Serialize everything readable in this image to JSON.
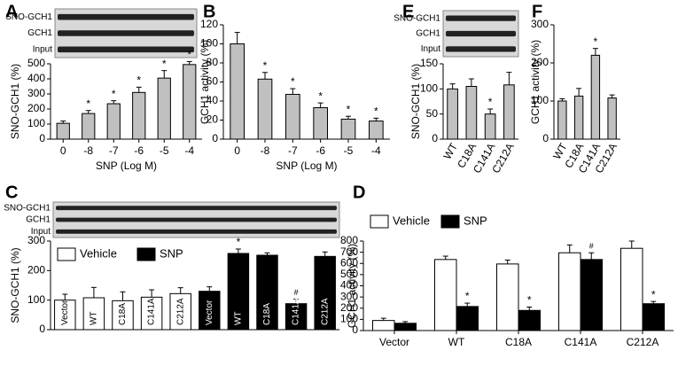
{
  "chart_data": [
    {
      "type": "bar",
      "panel": "A",
      "xlabel": "SNP (Log M)",
      "ylabel": "SNO-GCH1 (%)",
      "blot_labels": [
        "SNO-GCH1",
        "GCH1",
        "Input"
      ],
      "categories": [
        "0",
        "-8",
        "-7",
        "-6",
        "-5",
        "-4"
      ],
      "series": [
        {
          "color": "#c0c0c0",
          "values": [
            105,
            170,
            235,
            310,
            405,
            495
          ],
          "errors": [
            15,
            20,
            20,
            35,
            50,
            20
          ],
          "markers": [
            null,
            "*",
            "*",
            "*",
            "*",
            "*"
          ]
        }
      ],
      "ylim": [
        0,
        500
      ],
      "yticks": [
        0,
        100,
        200,
        300,
        400,
        500
      ]
    },
    {
      "type": "bar",
      "panel": "B",
      "xlabel": "SNP (Log M)",
      "ylabel": "GCH1 activity (%)",
      "categories": [
        "0",
        "-8",
        "-7",
        "-6",
        "-5",
        "-4"
      ],
      "series": [
        {
          "color": "#c0c0c0",
          "values": [
            100,
            63,
            47,
            33,
            21,
            19
          ],
          "errors": [
            12,
            7,
            6,
            5,
            3,
            3
          ],
          "markers": [
            null,
            "*",
            "*",
            "*",
            "*",
            "*"
          ]
        }
      ],
      "ylim": [
        0,
        120
      ],
      "yticks": [
        0,
        20,
        40,
        60,
        80,
        100,
        120
      ]
    },
    {
      "type": "bar",
      "panel": "E",
      "ylabel": "SNO-GCH1 (%)",
      "blot_labels": [
        "SNO-GCH1",
        "GCH1",
        "Input"
      ],
      "categories": [
        "WT",
        "C18A",
        "C141A",
        "C212A"
      ],
      "series": [
        {
          "color": "#c0c0c0",
          "values": [
            100,
            105,
            50,
            108
          ],
          "errors": [
            10,
            15,
            10,
            25
          ],
          "markers": [
            null,
            null,
            "*",
            null
          ]
        }
      ],
      "ylim": [
        0,
        150
      ],
      "yticks": [
        0,
        50,
        100,
        150
      ]
    },
    {
      "type": "bar",
      "panel": "F",
      "ylabel": "GCH1 activity (%)",
      "categories": [
        "WT",
        "C18A",
        "C141A",
        "C212A"
      ],
      "series": [
        {
          "color": "#c0c0c0",
          "values": [
            100,
            113,
            220,
            108
          ],
          "errors": [
            6,
            20,
            18,
            8
          ],
          "markers": [
            null,
            null,
            "*",
            null
          ]
        }
      ],
      "ylim": [
        0,
        300
      ],
      "yticks": [
        0,
        100,
        200,
        300
      ]
    },
    {
      "type": "bar",
      "panel": "C",
      "ylabel": "SNO-GCH1 (%)",
      "blot_labels": [
        "SNO-GCH1",
        "GCH1",
        "Input"
      ],
      "categories": [
        "Vector",
        "WT",
        "C18A",
        "C141A",
        "C212A",
        "Vector",
        "WT",
        "C18A",
        "C141A",
        "C212A"
      ],
      "series": [
        {
          "name": "Vehicle",
          "color": "#ffffff",
          "values": [
            100,
            108,
            98,
            110,
            122,
            null,
            null,
            null,
            null,
            null
          ],
          "errors": [
            20,
            35,
            30,
            25,
            20,
            null,
            null,
            null,
            null,
            null
          ],
          "markers": [
            null,
            null,
            null,
            null,
            null,
            null,
            null,
            null,
            null,
            null
          ]
        },
        {
          "name": "SNP",
          "color": "#000000",
          "values": [
            null,
            null,
            null,
            null,
            null,
            130,
            258,
            252,
            88,
            248
          ],
          "errors": [
            null,
            null,
            null,
            null,
            null,
            15,
            15,
            8,
            15,
            15
          ],
          "markers": [
            null,
            null,
            null,
            null,
            null,
            null,
            "*",
            null,
            "#",
            null
          ]
        }
      ],
      "ylim": [
        0,
        300
      ],
      "yticks": [
        0,
        100,
        200,
        300
      ]
    },
    {
      "type": "bar",
      "panel": "D",
      "ylabel": "GCH1 activity (%)",
      "categories": [
        "Vector",
        "WT",
        "C18A",
        "C141A",
        "C212A"
      ],
      "series": [
        {
          "name": "Vehicle",
          "color": "#ffffff",
          "values": [
            90,
            635,
            595,
            695,
            735
          ],
          "errors": [
            20,
            30,
            35,
            70,
            65
          ],
          "markers": [
            null,
            null,
            null,
            null,
            null
          ]
        },
        {
          "name": "SNP",
          "color": "#000000",
          "values": [
            65,
            215,
            180,
            635,
            240
          ],
          "errors": [
            15,
            30,
            30,
            60,
            20
          ],
          "markers": [
            null,
            "*",
            "*",
            "#",
            "*"
          ]
        }
      ],
      "ylim": [
        0,
        800
      ],
      "yticks": [
        0,
        100,
        200,
        300,
        400,
        500,
        600,
        700,
        800
      ]
    }
  ]
}
